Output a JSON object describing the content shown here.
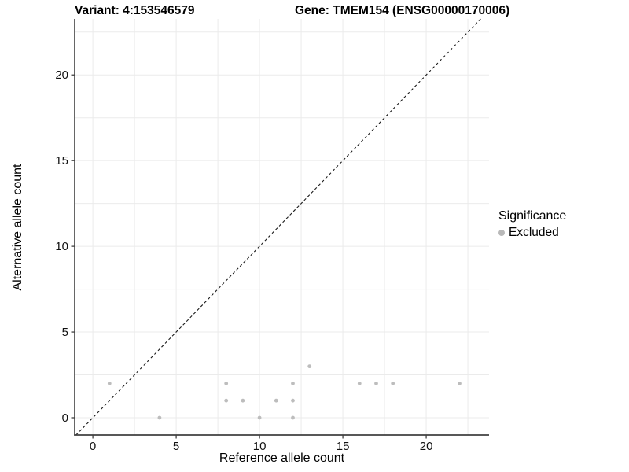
{
  "header": {
    "variant_title": "Variant: 4:153546579",
    "gene_title": "Gene: TMEM154 (ENSG00000170006)"
  },
  "chart_data": {
    "type": "scatter",
    "xlabel": "Reference allele count",
    "ylabel": "Alternative allele count",
    "xlim": [
      -1.09,
      23.77
    ],
    "ylim": [
      -1.01,
      23.27
    ],
    "x_ticks": [
      0,
      5,
      10,
      15,
      20
    ],
    "y_ticks": [
      0,
      5,
      10,
      15,
      20
    ],
    "x_grid": [
      0,
      2.5,
      5,
      7.5,
      10,
      12.5,
      15,
      17.5,
      20,
      22.5
    ],
    "y_grid": [
      0,
      2.5,
      5,
      7.5,
      10,
      12.5,
      15,
      17.5,
      20,
      22.5
    ],
    "grid": true,
    "series": [
      {
        "name": "Excluded",
        "color": "#bdbdbd",
        "points": [
          [
            1,
            2
          ],
          [
            4,
            0
          ],
          [
            8,
            1
          ],
          [
            8,
            2
          ],
          [
            9,
            1
          ],
          [
            10,
            0
          ],
          [
            11,
            1
          ],
          [
            12,
            0
          ],
          [
            12,
            1
          ],
          [
            12,
            2
          ],
          [
            13,
            3
          ],
          [
            16,
            2
          ],
          [
            17,
            2
          ],
          [
            18,
            2
          ],
          [
            22,
            2
          ]
        ]
      }
    ],
    "reference_line": {
      "kind": "identity",
      "style": "dashed",
      "color": "#1a1a1a"
    },
    "legend": {
      "title": "Significance",
      "position": "right",
      "items": [
        {
          "label": "Excluded",
          "color": "#b9b9b9"
        }
      ]
    },
    "colors": {
      "grid": "#ebebeb",
      "axis_line": "#404040",
      "tick_label": "#111111",
      "point": "#bdbdbd"
    }
  }
}
